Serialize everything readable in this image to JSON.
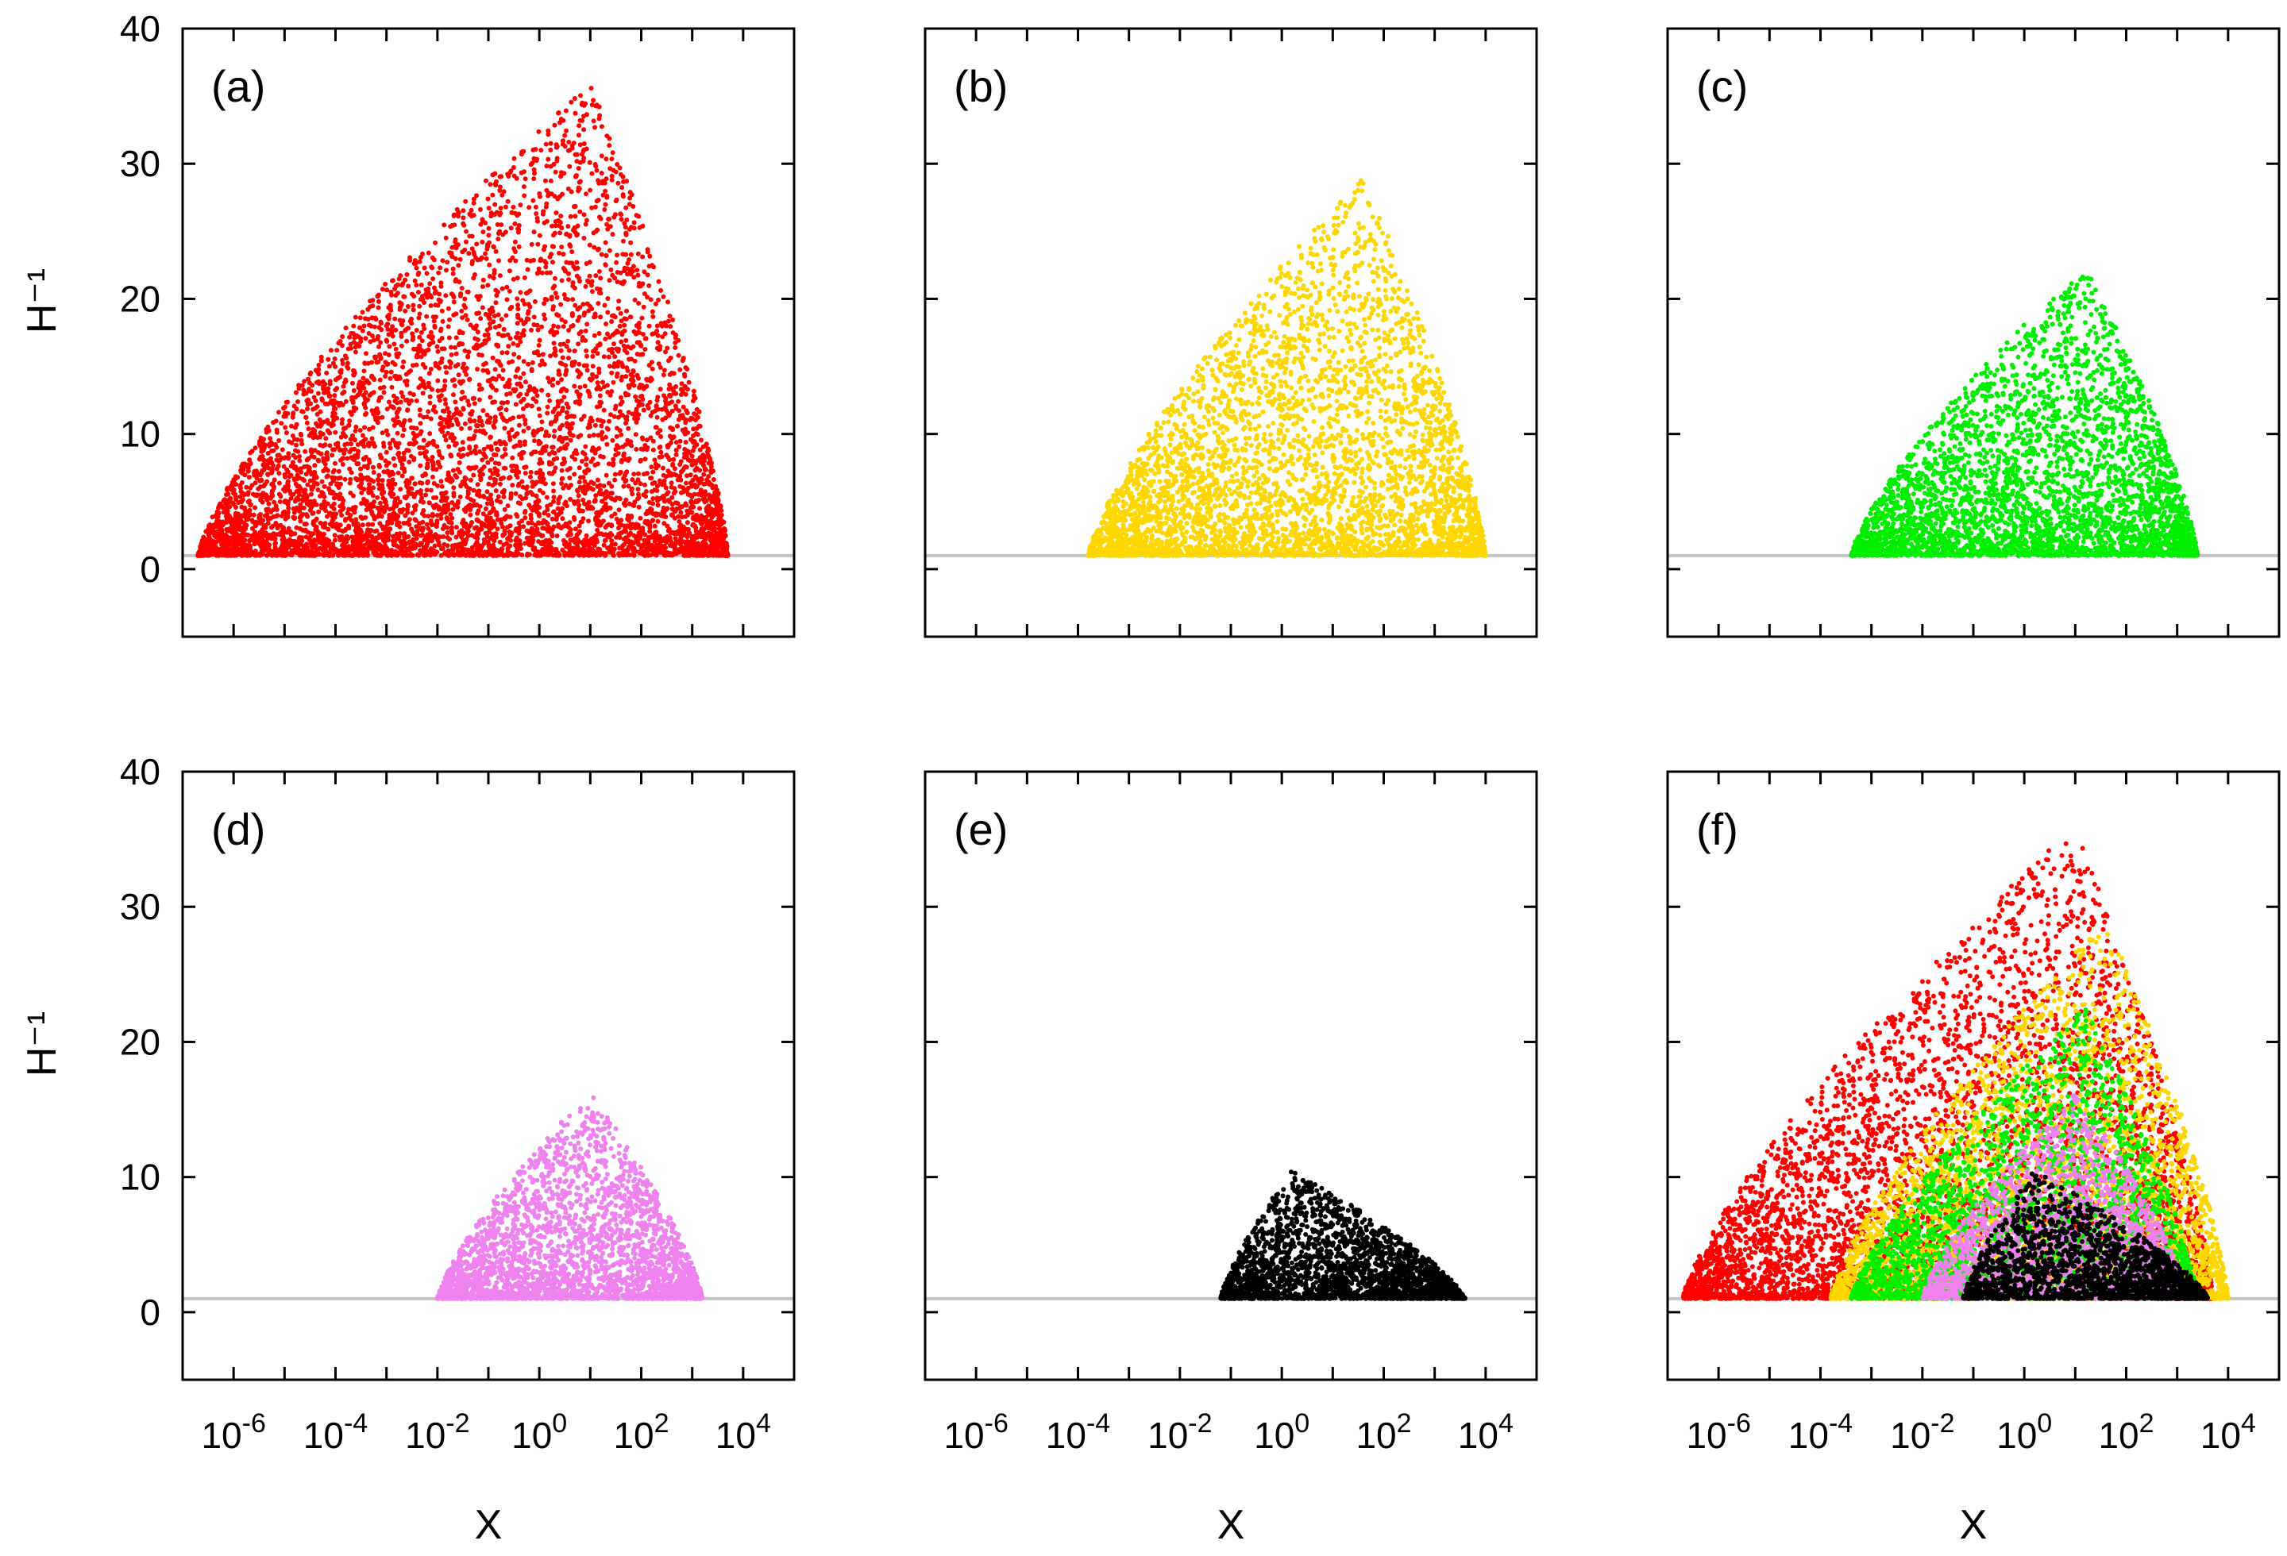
{
  "chart_data": [
    {
      "type": "scatter",
      "label": "(a)",
      "color": "#ff0000",
      "x_scale": "log10",
      "xlim_log10": [
        -7,
        5
      ],
      "ylim": [
        -5,
        40
      ],
      "xlabel": "",
      "ylabel": "H⁻¹",
      "reference_line_y": 1,
      "x_ticks": [
        {
          "base": "10",
          "exp": "-6"
        },
        {
          "base": "10",
          "exp": "-4"
        },
        {
          "base": "10",
          "exp": "-2"
        },
        {
          "base": "10",
          "exp": "0"
        },
        {
          "base": "10",
          "exp": "2"
        },
        {
          "base": "10",
          "exp": "4"
        }
      ],
      "y_ticks": [
        "0",
        "10",
        "20",
        "30",
        "40"
      ],
      "show_x_tick_labels": false,
      "show_y_tick_labels": true,
      "points_estimated": true,
      "envelope": {
        "log10x_min": -6.7,
        "log10x_max": 3.7,
        "log10x_peak": 1.0,
        "ymax": 36,
        "y_min": 1
      },
      "n_points": 6200
    },
    {
      "type": "scatter",
      "label": "(b)",
      "color": "#ffd700",
      "x_scale": "log10",
      "xlim_log10": [
        -7,
        5
      ],
      "ylim": [
        -5,
        40
      ],
      "xlabel": "",
      "ylabel": "",
      "reference_line_y": 1,
      "x_ticks": [
        {
          "base": "10",
          "exp": "-6"
        },
        {
          "base": "10",
          "exp": "-4"
        },
        {
          "base": "10",
          "exp": "-2"
        },
        {
          "base": "10",
          "exp": "0"
        },
        {
          "base": "10",
          "exp": "2"
        },
        {
          "base": "10",
          "exp": "4"
        }
      ],
      "y_ticks": [
        "0",
        "10",
        "20",
        "30",
        "40"
      ],
      "show_x_tick_labels": false,
      "show_y_tick_labels": false,
      "points_estimated": true,
      "envelope": {
        "log10x_min": -3.8,
        "log10x_max": 4.0,
        "log10x_peak": 1.6,
        "ymax": 29,
        "y_min": 1
      },
      "n_points": 4200
    },
    {
      "type": "scatter",
      "label": "(c)",
      "color": "#00ee00",
      "x_scale": "log10",
      "xlim_log10": [
        -7,
        5
      ],
      "ylim": [
        -5,
        40
      ],
      "xlabel": "",
      "ylabel": "",
      "reference_line_y": 1,
      "x_ticks": [
        {
          "base": "10",
          "exp": "-6"
        },
        {
          "base": "10",
          "exp": "-4"
        },
        {
          "base": "10",
          "exp": "-2"
        },
        {
          "base": "10",
          "exp": "0"
        },
        {
          "base": "10",
          "exp": "2"
        },
        {
          "base": "10",
          "exp": "4"
        }
      ],
      "y_ticks": [
        "0",
        "10",
        "20",
        "30",
        "40"
      ],
      "show_x_tick_labels": false,
      "show_y_tick_labels": false,
      "points_estimated": true,
      "envelope": {
        "log10x_min": -3.4,
        "log10x_max": 3.4,
        "log10x_peak": 1.2,
        "ymax": 22.5,
        "y_min": 1
      },
      "n_points": 3600
    },
    {
      "type": "scatter",
      "label": "(d)",
      "color": "#ee82ee",
      "x_scale": "log10",
      "xlim_log10": [
        -7,
        5
      ],
      "ylim": [
        -5,
        40
      ],
      "xlabel": "X",
      "ylabel": "H⁻¹",
      "reference_line_y": 1,
      "x_ticks": [
        {
          "base": "10",
          "exp": "-6"
        },
        {
          "base": "10",
          "exp": "-4"
        },
        {
          "base": "10",
          "exp": "-2"
        },
        {
          "base": "10",
          "exp": "0"
        },
        {
          "base": "10",
          "exp": "2"
        },
        {
          "base": "10",
          "exp": "4"
        }
      ],
      "y_ticks": [
        "0",
        "10",
        "20",
        "30",
        "40"
      ],
      "show_x_tick_labels": true,
      "show_y_tick_labels": true,
      "points_estimated": true,
      "envelope": {
        "log10x_min": -2.0,
        "log10x_max": 3.2,
        "log10x_peak": 1.0,
        "ymax": 16.3,
        "y_min": 1
      },
      "n_points": 2800
    },
    {
      "type": "scatter",
      "label": "(e)",
      "color": "#000000",
      "x_scale": "log10",
      "xlim_log10": [
        -7,
        5
      ],
      "ylim": [
        -5,
        40
      ],
      "xlabel": "X",
      "ylabel": "",
      "reference_line_y": 1,
      "x_ticks": [
        {
          "base": "10",
          "exp": "-6"
        },
        {
          "base": "10",
          "exp": "-4"
        },
        {
          "base": "10",
          "exp": "-2"
        },
        {
          "base": "10",
          "exp": "0"
        },
        {
          "base": "10",
          "exp": "2"
        },
        {
          "base": "10",
          "exp": "4"
        }
      ],
      "y_ticks": [
        "0",
        "10",
        "20",
        "30",
        "40"
      ],
      "show_x_tick_labels": true,
      "show_y_tick_labels": false,
      "points_estimated": true,
      "envelope": {
        "log10x_min": -1.2,
        "log10x_max": 3.6,
        "log10x_peak": 0.2,
        "ymax": 10.5,
        "y_min": 1
      },
      "n_points": 2400
    },
    {
      "type": "scatter",
      "label": "(f)",
      "color": "overlay of (a)-(e)",
      "x_scale": "log10",
      "xlim_log10": [
        -7,
        5
      ],
      "ylim": [
        -5,
        40
      ],
      "xlabel": "X",
      "ylabel": "",
      "reference_line_y": 1,
      "x_ticks": [
        {
          "base": "10",
          "exp": "-6"
        },
        {
          "base": "10",
          "exp": "-4"
        },
        {
          "base": "10",
          "exp": "-2"
        },
        {
          "base": "10",
          "exp": "0"
        },
        {
          "base": "10",
          "exp": "2"
        },
        {
          "base": "10",
          "exp": "4"
        }
      ],
      "y_ticks": [
        "0",
        "10",
        "20",
        "30",
        "40"
      ],
      "show_x_tick_labels": true,
      "show_y_tick_labels": false,
      "points_estimated": true,
      "overlay_of": [
        "(a)",
        "(b)",
        "(c)",
        "(d)",
        "(e)"
      ]
    }
  ]
}
